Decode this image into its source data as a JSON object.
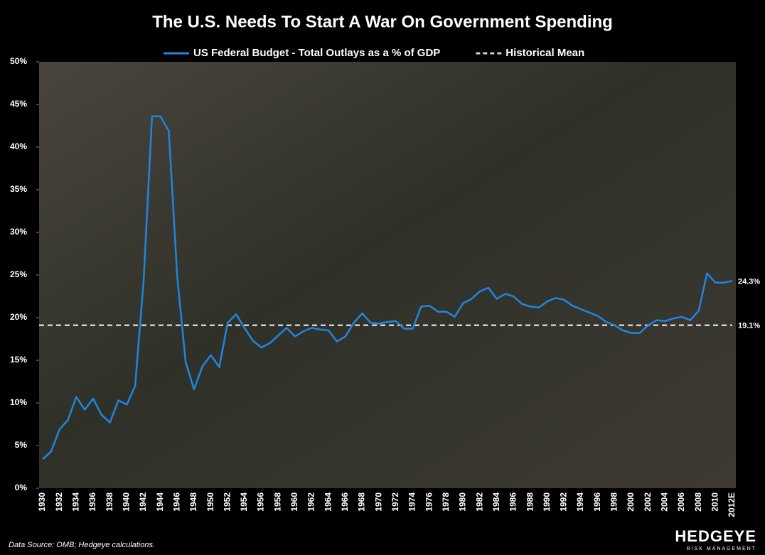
{
  "chart_data": {
    "type": "line",
    "title": "The U.S. Needs To Start A War On Government Spending",
    "categories": [
      "1930",
      null,
      "1932",
      null,
      "1934",
      null,
      "1936",
      null,
      "1938",
      null,
      "1940",
      null,
      "1942",
      null,
      "1944",
      null,
      "1946",
      null,
      "1948",
      null,
      "1950",
      null,
      "1952",
      null,
      "1954",
      null,
      "1956",
      null,
      "1958",
      null,
      "1960",
      null,
      "1962",
      null,
      "1964",
      null,
      "1966",
      null,
      "1968",
      null,
      "1970",
      null,
      "1972",
      null,
      "1974",
      null,
      "1976",
      null,
      "1978",
      null,
      "1980",
      null,
      "1982",
      null,
      "1984",
      null,
      "1986",
      null,
      "1988",
      null,
      "1990",
      null,
      "1992",
      null,
      "1994",
      null,
      "1996",
      null,
      "1998",
      null,
      "2000",
      null,
      "2002",
      null,
      "2004",
      null,
      "2006",
      null,
      "2008",
      null,
      "2010",
      null,
      "2012E"
    ],
    "series": [
      {
        "name": "US Federal Budget - Total Outlays as a % of GDP",
        "color": "#1f86e0",
        "values": [
          3.4,
          4.3,
          6.9,
          8.0,
          10.7,
          9.2,
          10.5,
          8.6,
          7.7,
          10.3,
          9.8,
          12.0,
          24.3,
          43.6,
          43.6,
          41.9,
          24.8,
          14.8,
          11.6,
          14.3,
          15.6,
          14.2,
          19.4,
          20.4,
          18.8,
          17.3,
          16.5,
          17.0,
          17.9,
          18.8,
          17.8,
          18.4,
          18.8,
          18.6,
          18.5,
          17.2,
          17.8,
          19.4,
          20.5,
          19.4,
          19.3,
          19.5,
          19.6,
          18.7,
          18.7,
          21.3,
          21.4,
          20.7,
          20.7,
          20.1,
          21.7,
          22.2,
          23.1,
          23.5,
          22.2,
          22.8,
          22.5,
          21.6,
          21.3,
          21.2,
          21.9,
          22.3,
          22.1,
          21.4,
          21.0,
          20.6,
          20.2,
          19.5,
          19.1,
          18.5,
          18.2,
          18.2,
          19.1,
          19.7,
          19.6,
          19.9,
          20.1,
          19.7,
          20.8,
          25.2,
          24.1,
          24.1,
          24.3
        ],
        "value_labels": [
          null,
          null,
          null,
          null,
          null,
          null,
          null,
          null,
          null,
          null,
          null,
          null,
          null,
          null,
          null,
          null,
          null,
          null,
          null,
          null,
          null,
          null,
          null,
          null,
          null,
          null,
          null,
          null,
          null,
          null,
          null,
          null,
          null,
          null,
          null,
          null,
          null,
          null,
          null,
          null,
          null,
          null,
          null,
          null,
          null,
          null,
          null,
          null,
          null,
          null,
          null,
          null,
          null,
          null,
          null,
          null,
          null,
          null,
          null,
          null,
          null,
          null,
          null,
          null,
          null,
          null,
          null,
          null,
          null,
          null,
          null,
          null,
          null,
          null,
          null,
          null,
          null,
          null,
          null,
          null,
          null,
          null,
          "24.3%"
        ]
      }
    ],
    "reference_lines": [
      {
        "name": "Historical Mean",
        "color": "#d0d0d0",
        "dashed": true,
        "value": 19.1,
        "value_label": "19.1%"
      }
    ],
    "ylim": [
      0,
      50
    ],
    "yticks": [
      {
        "value": 0,
        "label": "0%"
      },
      {
        "value": 5,
        "label": "5%"
      },
      {
        "value": 10,
        "label": "10%"
      },
      {
        "value": 15,
        "label": "15%"
      },
      {
        "value": 20,
        "label": "20%"
      },
      {
        "value": 25,
        "label": "25%"
      },
      {
        "value": 30,
        "label": "30%"
      },
      {
        "value": 35,
        "label": "35%"
      },
      {
        "value": 40,
        "label": "40%"
      },
      {
        "value": 45,
        "label": "45%"
      },
      {
        "value": 50,
        "label": "50%"
      }
    ],
    "grid": false,
    "legend": "top",
    "source": "Data Source: OMB; Hedgeye calculations.",
    "logo": {
      "name": "HEDGEYE",
      "tagline": "RISK MANAGEMENT"
    }
  }
}
